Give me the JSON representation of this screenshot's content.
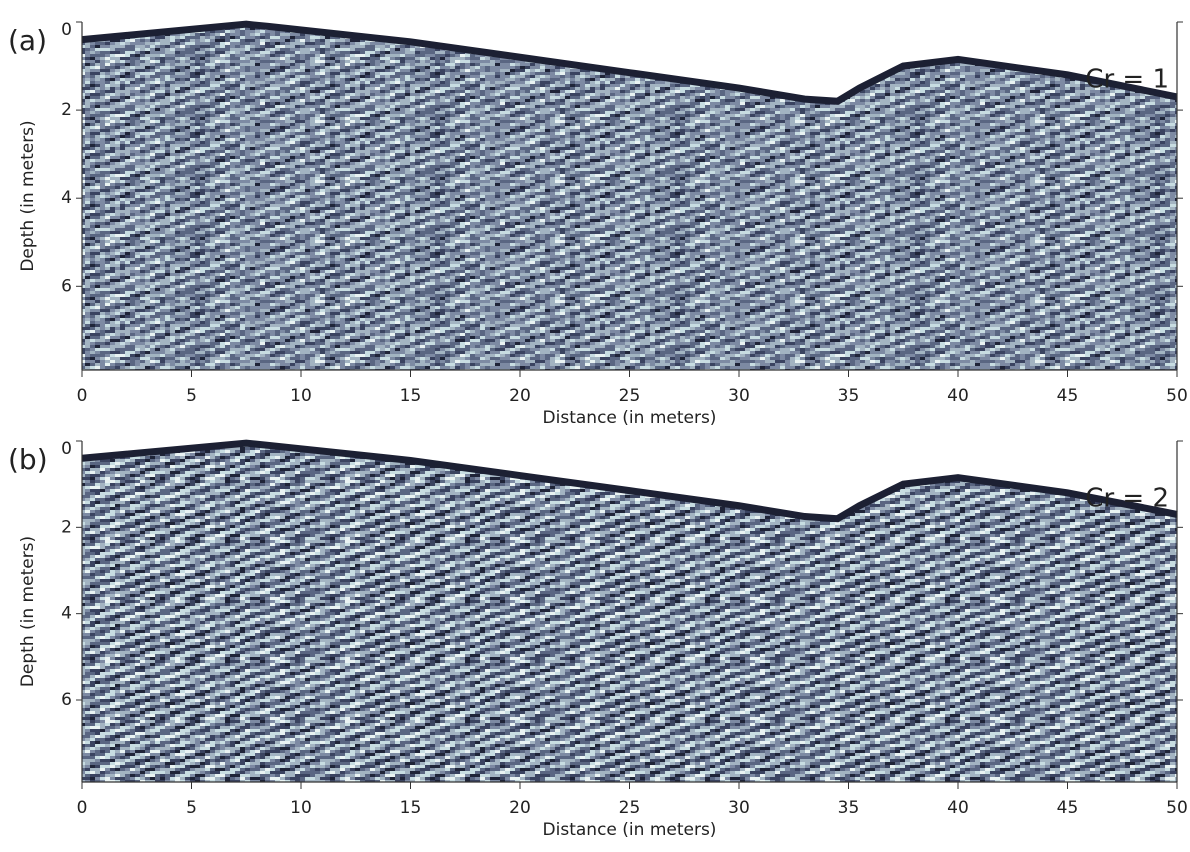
{
  "chart_data": [
    {
      "type": "radargram",
      "panel_label": "(a)",
      "annotation": "Cr = 1",
      "xlabel": "Distance (in meters)",
      "ylabel": "Depth (in meters)",
      "xlim": [
        0,
        50
      ],
      "ylim": [
        0,
        7.9
      ],
      "xticks": [
        0,
        5,
        10,
        15,
        20,
        25,
        30,
        35,
        40,
        45,
        50
      ],
      "yticks": [
        0,
        2,
        4,
        6
      ],
      "x": [
        0,
        7.5,
        8.5,
        15,
        20,
        25,
        30,
        33,
        34.5,
        35.5,
        37.5,
        40,
        45,
        50
      ],
      "values": [
        0.4,
        0.05,
        0.1,
        0.45,
        0.8,
        1.15,
        1.5,
        1.75,
        1.8,
        1.5,
        1.0,
        0.85,
        1.2,
        1.7
      ]
    },
    {
      "type": "radargram",
      "panel_label": "(b)",
      "annotation": "Cr = 2",
      "xlabel": "Distance (in meters)",
      "ylabel": "Depth (in meters)",
      "xlim": [
        0,
        50
      ],
      "ylim": [
        0,
        7.9
      ],
      "xticks": [
        0,
        5,
        10,
        15,
        20,
        25,
        30,
        35,
        40,
        45,
        50
      ],
      "yticks": [
        0,
        2,
        4,
        6
      ],
      "x": [
        0,
        7.5,
        8.5,
        15,
        20,
        25,
        30,
        33,
        34.5,
        35.5,
        37.5,
        40,
        45,
        50
      ],
      "values": [
        0.4,
        0.05,
        0.1,
        0.45,
        0.8,
        1.15,
        1.5,
        1.75,
        1.8,
        1.5,
        1.0,
        0.85,
        1.2,
        1.7
      ]
    }
  ]
}
